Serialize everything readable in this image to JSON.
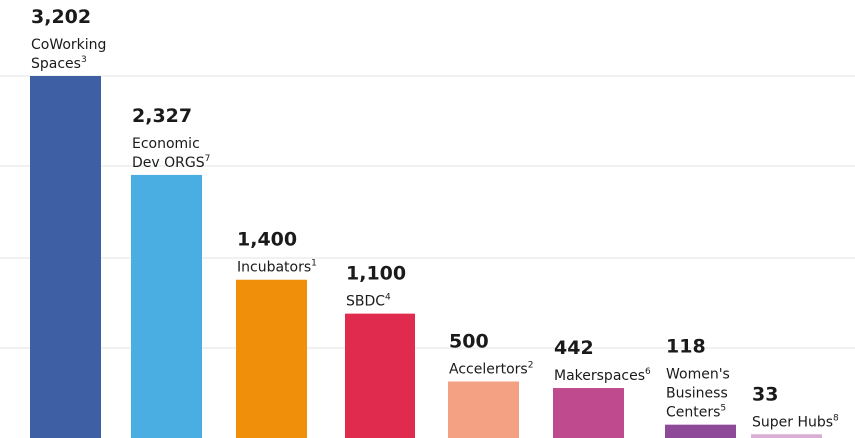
{
  "chart_data": {
    "type": "bar",
    "title": "",
    "xlabel": "",
    "ylabel": "",
    "ylim": [
      0,
      3400
    ],
    "grid": true,
    "categories": [
      {
        "value_label": "3,202",
        "lines": [
          "CoWorking",
          "Spaces"
        ],
        "sup": "3"
      },
      {
        "value_label": "2,327",
        "lines": [
          "Economic",
          "Dev ORGS"
        ],
        "sup": "7"
      },
      {
        "value_label": "1,400",
        "lines": [
          "Incubators"
        ],
        "sup": "1"
      },
      {
        "value_label": "1,100",
        "lines": [
          "SBDC"
        ],
        "sup": "4"
      },
      {
        "value_label": "500",
        "lines": [
          "Accelertors"
        ],
        "sup": "2"
      },
      {
        "value_label": "442",
        "lines": [
          "Makerspaces"
        ],
        "sup": "6"
      },
      {
        "value_label": "118",
        "lines": [
          "Women's",
          "Business",
          "Centers"
        ],
        "sup": "5"
      },
      {
        "value_label": "33",
        "lines": [
          "Super Hubs"
        ],
        "sup": "8"
      }
    ],
    "values": [
      3202,
      2327,
      1400,
      1100,
      500,
      442,
      118,
      33
    ],
    "colors": [
      "#3f5fa5",
      "#4aaee2",
      "#f0900a",
      "#e02a4e",
      "#f4a083",
      "#c04a8e",
      "#8e4a98",
      "#d8aed2"
    ]
  }
}
